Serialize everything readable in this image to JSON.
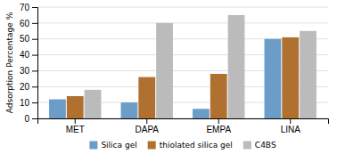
{
  "chart_data": {
    "type": "bar",
    "categories": [
      "MET",
      "DAPA",
      "EMPA",
      "LINA"
    ],
    "series": [
      {
        "name": "Silica gel",
        "color": "#6B9DC8",
        "values": [
          12,
          10,
          6,
          50
        ]
      },
      {
        "name": "thiolated silica gel",
        "color": "#B07030",
        "values": [
          14,
          26,
          28,
          51
        ]
      },
      {
        "name": "C4BS",
        "color": "#BBBBBB",
        "values": [
          18,
          60,
          65,
          55
        ]
      }
    ],
    "ylabel": "Adsorption Percentage %",
    "ylim": [
      0,
      70
    ],
    "yticks": [
      0,
      10,
      20,
      30,
      40,
      50,
      60,
      70
    ],
    "grid": true,
    "legend": "bottom"
  }
}
